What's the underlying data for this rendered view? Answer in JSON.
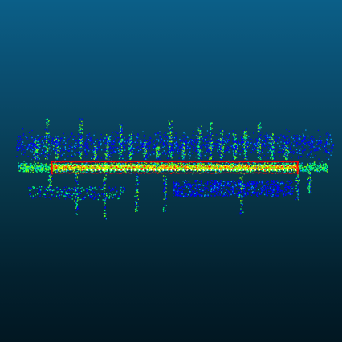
{
  "view": {
    "background_top_color": "#0b5f88",
    "background_bottom_color": "#021722"
  },
  "point_cloud": {
    "colormap": [
      "#0000ff",
      "#00a0ff",
      "#00ff80",
      "#80ff00",
      "#ffff00",
      "#ff8000",
      "#ff0000"
    ],
    "corridor_color": "#ffffff"
  }
}
